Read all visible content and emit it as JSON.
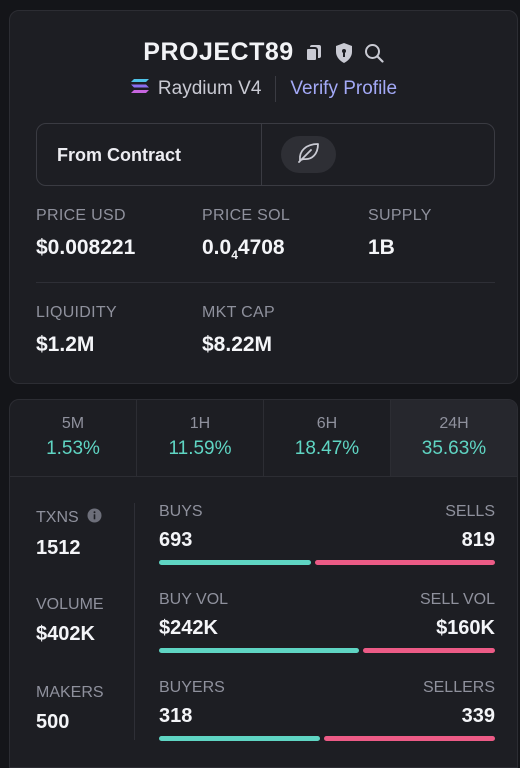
{
  "header": {
    "token_name": "PROJECT89",
    "dex_name": "Raydium V4",
    "verify_label": "Verify Profile",
    "icons": [
      "copy-icon",
      "shield-icon",
      "search-icon",
      "raydium-logo-icon",
      "leaf-icon",
      "info-icon"
    ]
  },
  "contract": {
    "label": "From Contract"
  },
  "stats": {
    "price_usd": {
      "label": "PRICE USD",
      "value": "$0.008221"
    },
    "price_sol": {
      "label": "PRICE SOL",
      "value_prefix": "0.0",
      "value_sub": "4",
      "value_suffix": "4708"
    },
    "supply": {
      "label": "SUPPLY",
      "value": "1B"
    },
    "liquidity": {
      "label": "LIQUIDITY",
      "value": "$1.2M"
    },
    "mkt_cap": {
      "label": "MKT CAP",
      "value": "$8.22M"
    }
  },
  "timeframes": [
    {
      "label": "5M",
      "change": "1.53%"
    },
    {
      "label": "1H",
      "change": "11.59%"
    },
    {
      "label": "6H",
      "change": "18.47%"
    },
    {
      "label": "24H",
      "change": "35.63%",
      "selected": true
    }
  ],
  "activity": {
    "txns": {
      "label": "TXNS",
      "value": "1512"
    },
    "volume": {
      "label": "VOLUME",
      "value": "$402K"
    },
    "makers": {
      "label": "MAKERS",
      "value": "500"
    },
    "buys": {
      "left_label": "BUYS",
      "left_value": "693",
      "right_label": "SELLS",
      "right_value": "819",
      "left_fraction": 0.458
    },
    "vol_split": {
      "left_label": "BUY VOL",
      "left_value": "$242K",
      "right_label": "SELL VOL",
      "right_value": "$160K",
      "left_fraction": 0.602
    },
    "buyers": {
      "left_label": "BUYERS",
      "left_value": "318",
      "right_label": "SELLERS",
      "right_value": "339",
      "left_fraction": 0.484
    }
  },
  "colors": {
    "positive": "#5fd5c3",
    "negative": "#ec5b86",
    "accent": "#a3a9f7"
  }
}
